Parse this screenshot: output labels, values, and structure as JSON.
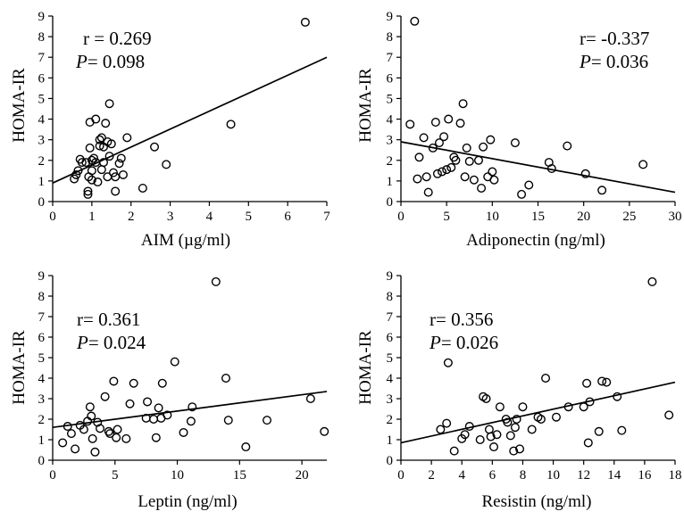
{
  "chart_data": [
    {
      "type": "scatter",
      "xlabel": "AIM (µg/ml)",
      "ylabel": "HOMA-IR",
      "xlim": [
        0,
        7
      ],
      "ylim": [
        0,
        9
      ],
      "xticks": [
        0,
        1,
        2,
        3,
        4,
        5,
        6,
        7
      ],
      "yticks": [
        0,
        1,
        2,
        3,
        4,
        5,
        6,
        7,
        8,
        9
      ],
      "annotation": {
        "r_text": "r = 0.269",
        "p_label": "P",
        "p_value": "= 0.098",
        "placement": "top-left"
      },
      "fit_line": {
        "x": [
          0,
          7
        ],
        "y": [
          0.9,
          7.0
        ]
      },
      "points": {
        "x": [
          0.55,
          0.6,
          0.65,
          0.7,
          0.75,
          0.85,
          0.9,
          0.9,
          0.92,
          0.95,
          0.95,
          1.0,
          1.0,
          1.0,
          1.05,
          1.1,
          1.1,
          1.15,
          1.2,
          1.2,
          1.25,
          1.25,
          1.3,
          1.3,
          1.35,
          1.4,
          1.4,
          1.45,
          1.45,
          1.5,
          1.55,
          1.6,
          1.6,
          1.7,
          1.75,
          1.8,
          1.9,
          2.3,
          2.6,
          2.9,
          4.55,
          6.45
        ],
        "y": [
          1.1,
          1.3,
          1.5,
          2.05,
          1.9,
          1.9,
          0.5,
          0.35,
          1.2,
          3.85,
          2.6,
          1.05,
          2.0,
          1.5,
          2.1,
          1.9,
          4.0,
          0.95,
          3.0,
          2.7,
          3.1,
          1.55,
          2.65,
          1.9,
          3.8,
          2.9,
          1.2,
          4.75,
          2.2,
          2.8,
          1.4,
          1.2,
          0.5,
          1.85,
          2.1,
          1.3,
          3.1,
          0.65,
          2.65,
          1.8,
          3.75,
          8.7
        ]
      }
    },
    {
      "type": "scatter",
      "xlabel": "Adiponectin (ng/ml)",
      "ylabel": "HOMA-IR",
      "xlim": [
        0,
        30
      ],
      "ylim": [
        0,
        9
      ],
      "xticks": [
        0,
        5,
        10,
        15,
        20,
        25,
        30
      ],
      "yticks": [
        0,
        1,
        2,
        3,
        4,
        5,
        6,
        7,
        8,
        9
      ],
      "annotation": {
        "r_text": "r= -0.337",
        "p_label": "P",
        "p_value": "= 0.036",
        "placement": "top-right"
      },
      "fit_line": {
        "x": [
          0,
          30
        ],
        "y": [
          2.9,
          0.45
        ]
      },
      "points": {
        "x": [
          1.0,
          1.5,
          1.8,
          2.0,
          2.5,
          2.8,
          3.0,
          3.5,
          3.8,
          4.0,
          4.2,
          4.5,
          4.7,
          5.0,
          5.2,
          5.5,
          5.8,
          6.0,
          6.5,
          6.8,
          7.0,
          7.2,
          7.5,
          8.0,
          8.5,
          8.8,
          9.0,
          9.5,
          9.8,
          10.0,
          10.2,
          12.5,
          13.2,
          14.0,
          16.2,
          16.5,
          18.2,
          20.2,
          22.0,
          26.5
        ],
        "y": [
          3.75,
          8.75,
          1.1,
          2.15,
          3.1,
          1.2,
          0.45,
          2.6,
          3.85,
          1.35,
          2.85,
          1.45,
          3.15,
          1.55,
          4.0,
          1.65,
          2.15,
          2.0,
          3.8,
          4.75,
          1.2,
          2.6,
          1.95,
          1.05,
          2.0,
          0.65,
          2.65,
          1.2,
          3.0,
          1.45,
          1.05,
          2.85,
          0.35,
          0.8,
          1.9,
          1.6,
          2.7,
          1.35,
          0.55,
          1.8
        ]
      }
    },
    {
      "type": "scatter",
      "xlabel": "Leptin (ng/ml)",
      "ylabel": "HOMA-IR",
      "xlim": [
        0,
        22
      ],
      "ylim": [
        0,
        9
      ],
      "xticks": [
        0,
        5,
        10,
        15,
        20
      ],
      "yticks": [
        0,
        1,
        2,
        3,
        4,
        5,
        6,
        7,
        8,
        9
      ],
      "annotation": {
        "r_text": "r= 0.361",
        "p_label": "P",
        "p_value": "= 0.024",
        "placement": "top-left"
      },
      "fit_line": {
        "x": [
          0,
          22
        ],
        "y": [
          1.6,
          3.35
        ]
      },
      "points": {
        "x": [
          0.8,
          1.2,
          1.5,
          1.8,
          2.2,
          2.5,
          2.8,
          3.0,
          3.1,
          3.2,
          3.4,
          3.6,
          3.8,
          4.2,
          4.5,
          4.6,
          4.9,
          5.1,
          5.2,
          5.9,
          6.2,
          6.5,
          7.5,
          7.6,
          8.1,
          8.3,
          8.5,
          8.7,
          8.8,
          9.2,
          9.8,
          10.5,
          11.1,
          11.2,
          13.1,
          13.9,
          14.1,
          15.5,
          17.2,
          20.7,
          21.8
        ],
        "y": [
          0.85,
          1.65,
          1.3,
          0.55,
          1.7,
          1.5,
          1.9,
          2.6,
          2.15,
          1.05,
          0.4,
          1.85,
          1.55,
          3.1,
          1.4,
          1.3,
          3.85,
          1.1,
          1.5,
          1.05,
          2.75,
          3.75,
          2.05,
          2.85,
          2.0,
          1.1,
          2.55,
          2.05,
          3.75,
          2.2,
          4.8,
          1.35,
          1.9,
          2.6,
          8.7,
          4.0,
          1.95,
          0.65,
          1.95,
          3.0,
          1.4
        ]
      }
    },
    {
      "type": "scatter",
      "xlabel": "Resistin (ng/ml)",
      "ylabel": "HOMA-IR",
      "xlim": [
        0,
        18
      ],
      "ylim": [
        0,
        9
      ],
      "xticks": [
        0,
        2,
        4,
        6,
        8,
        10,
        12,
        14,
        16,
        18
      ],
      "yticks": [
        0,
        1,
        2,
        3,
        4,
        5,
        6,
        7,
        8,
        9
      ],
      "annotation": {
        "r_text": "r= 0.356",
        "p_label": "P",
        "p_value": "= 0.026",
        "placement": "top-left"
      },
      "fit_line": {
        "x": [
          0,
          18
        ],
        "y": [
          0.85,
          3.8
        ]
      },
      "points": {
        "x": [
          2.6,
          3.0,
          3.1,
          3.5,
          4.0,
          4.2,
          4.5,
          5.2,
          5.4,
          5.6,
          5.8,
          5.9,
          6.1,
          6.3,
          6.5,
          6.9,
          7.0,
          7.2,
          7.4,
          7.5,
          7.6,
          7.8,
          8.0,
          8.6,
          9.0,
          9.2,
          9.5,
          10.2,
          11.0,
          12.0,
          12.2,
          12.3,
          12.4,
          13.0,
          13.2,
          13.5,
          14.2,
          14.5,
          16.5,
          17.6
        ],
        "y": [
          1.5,
          1.8,
          4.75,
          0.45,
          1.05,
          1.25,
          1.65,
          1.0,
          3.1,
          3.0,
          1.5,
          1.15,
          0.65,
          1.25,
          2.6,
          2.0,
          1.85,
          1.2,
          0.45,
          1.6,
          2.0,
          0.55,
          2.6,
          1.5,
          2.1,
          2.0,
          4.0,
          2.1,
          2.6,
          2.6,
          3.75,
          0.85,
          2.85,
          1.4,
          3.85,
          3.8,
          3.1,
          1.45,
          8.7,
          2.2
        ]
      }
    }
  ]
}
